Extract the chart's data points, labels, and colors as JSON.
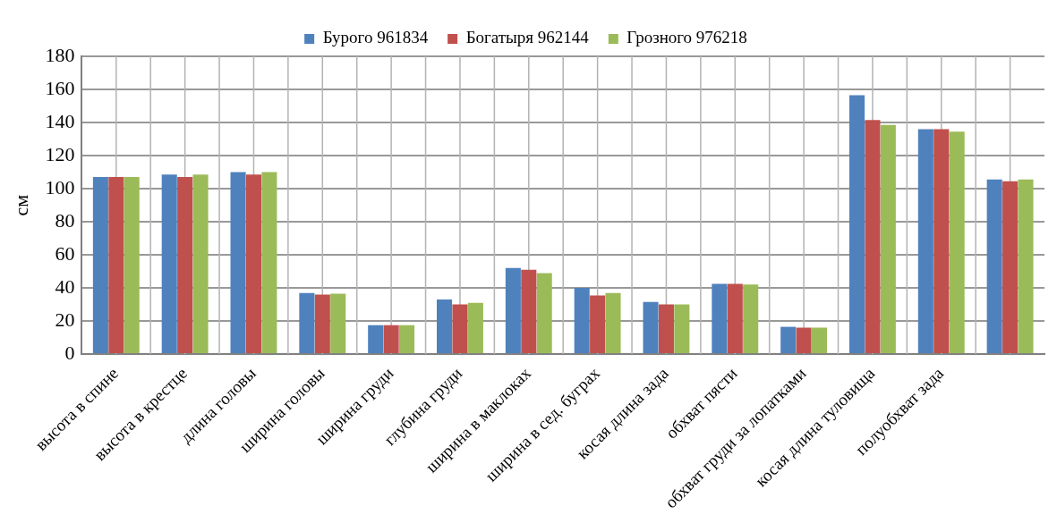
{
  "chart_data": {
    "type": "bar",
    "ylabel": "см",
    "categories": [
      "высота в спине",
      "высота в крестце",
      "длина головы",
      "ширина головы",
      "ширина груди",
      "глубина груди",
      "ширина в маклоках",
      "ширина в сед. буграх",
      "косая длина зада",
      "обхват пясти",
      "обхват груди за лопатками",
      "косая длина туловища",
      "полуобхват зада",
      null
    ],
    "series": [
      {
        "name": "Бурого 961834",
        "color": "#4f81bd",
        "values": [
          107,
          108.5,
          110,
          37,
          17.5,
          33,
          52,
          40,
          31.5,
          42.5,
          16.5,
          156.5,
          136,
          105.5
        ]
      },
      {
        "name": "Богатыря 962144",
        "color": "#c0504d",
        "values": [
          107,
          107,
          108.5,
          36,
          17.5,
          30,
          51,
          35.5,
          30,
          42.5,
          16,
          141.5,
          136,
          104.5
        ]
      },
      {
        "name": "Грозного 976218",
        "color": "#9bbb59",
        "values": [
          107,
          108.5,
          110,
          36.5,
          17.5,
          31,
          49,
          37,
          30,
          42,
          16,
          138.5,
          134.5,
          105.5
        ]
      }
    ],
    "ylim": [
      0,
      180
    ],
    "yticks": [
      0,
      20,
      40,
      60,
      80,
      100,
      120,
      140,
      160,
      180
    ],
    "grid": true,
    "legend": "top"
  }
}
